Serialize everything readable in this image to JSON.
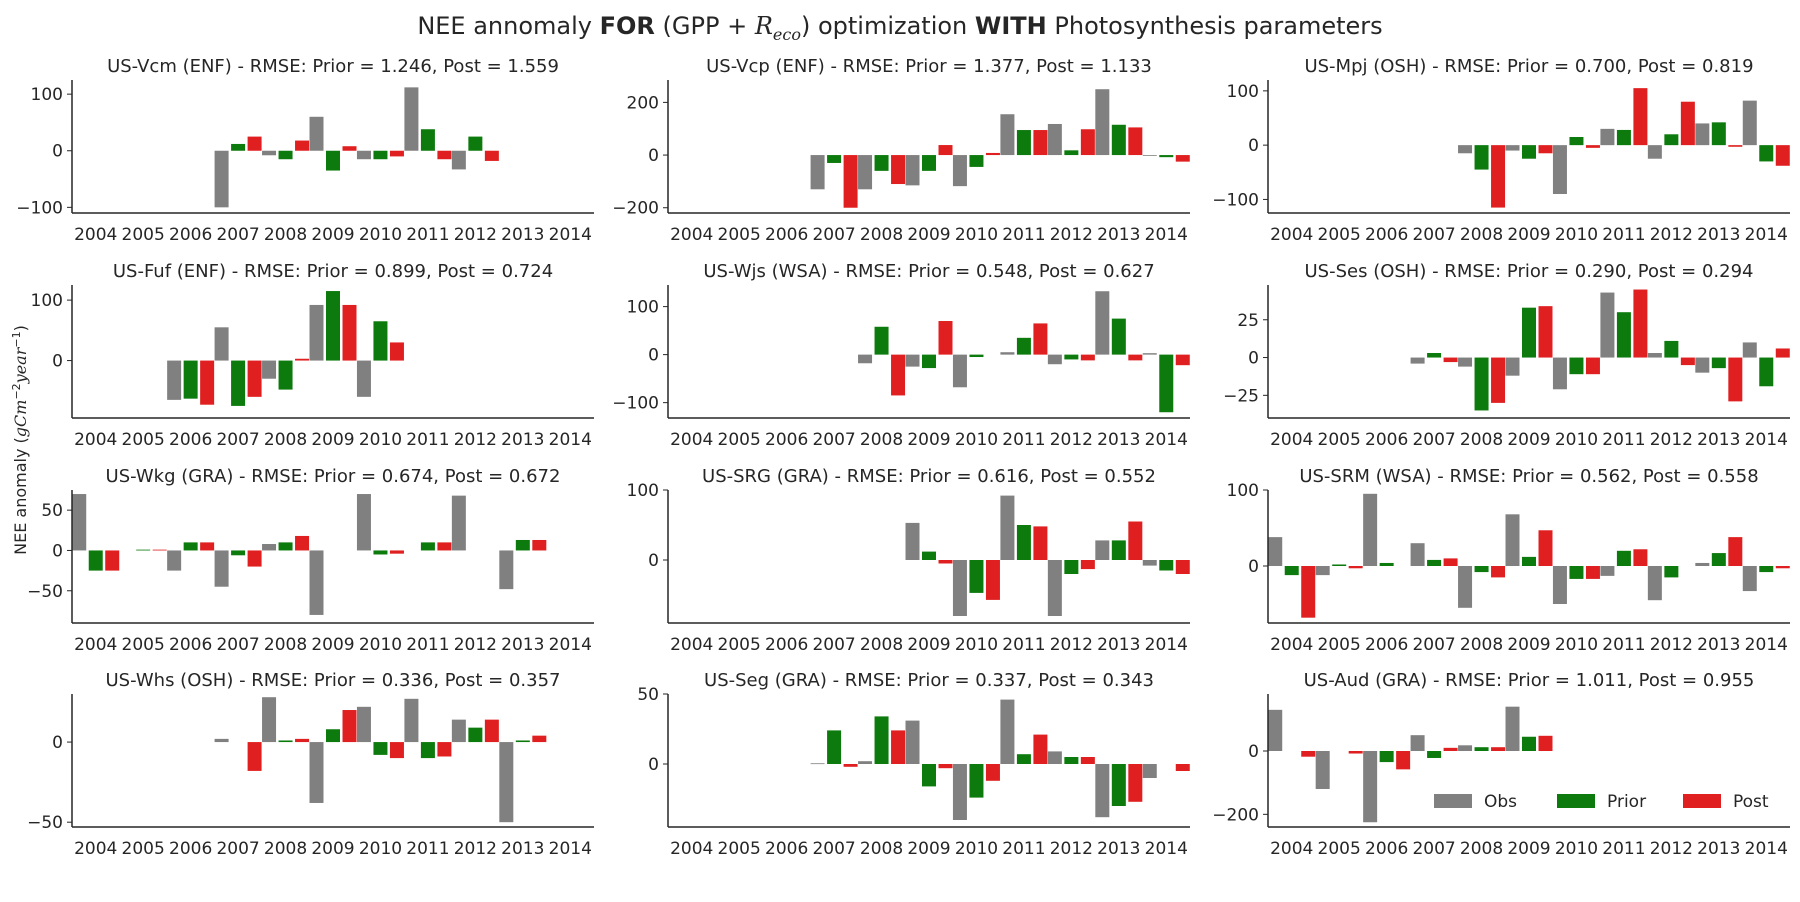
{
  "figure": {
    "title_pre": "NEE annomaly ",
    "title_for": "FOR",
    "title_mid1": " (GPP + ",
    "title_r": "R",
    "title_sub": "eco",
    "title_mid2": ") optimization ",
    "title_with": "WITH",
    "title_post": " Photosynthesis parameters",
    "ylabel_pre": "NEE anomaly (",
    "ylabel_unit": "gCm",
    "ylabel_exp1": "−2",
    "ylabel_mid": "year",
    "ylabel_exp2": "−1",
    "ylabel_post": ")"
  },
  "colors": {
    "Obs": "#808080",
    "Prior": "#0c7a0c",
    "Post": "#e02020",
    "axis": "#262626"
  },
  "legend": {
    "placement": "lower-right",
    "entries": [
      "Obs",
      "Prior",
      "Post"
    ]
  },
  "chart_data": [
    {
      "type": "bar",
      "title": "US-Vcm (ENF) - RMSE: Prior = 1.246, Post = 1.559",
      "categories": [
        "2004",
        "2005",
        "2006",
        "2007",
        "2008",
        "2009",
        "2010",
        "2011",
        "2012",
        "2013",
        "2014"
      ],
      "ylim": [
        -110,
        125
      ],
      "yticks": [
        -100,
        0,
        100
      ],
      "series": [
        {
          "name": "Obs",
          "values": [
            null,
            null,
            null,
            -100,
            -8,
            60,
            -15,
            112,
            -33,
            null,
            null
          ]
        },
        {
          "name": "Prior",
          "values": [
            null,
            null,
            null,
            12,
            -15,
            -35,
            -15,
            38,
            25,
            null,
            null
          ]
        },
        {
          "name": "Post",
          "values": [
            null,
            null,
            null,
            25,
            18,
            8,
            -10,
            -15,
            -18,
            null,
            null
          ]
        }
      ]
    },
    {
      "type": "bar",
      "title": "US-Vcp (ENF) - RMSE: Prior = 1.377, Post = 1.133",
      "categories": [
        "2004",
        "2005",
        "2006",
        "2007",
        "2008",
        "2009",
        "2010",
        "2011",
        "2012",
        "2013",
        "2014"
      ],
      "ylim": [
        -220,
        285
      ],
      "yticks": [
        -200,
        0,
        200
      ],
      "series": [
        {
          "name": "Obs",
          "values": [
            null,
            null,
            null,
            -130,
            -130,
            -115,
            -118,
            155,
            118,
            250,
            -3
          ]
        },
        {
          "name": "Prior",
          "values": [
            null,
            null,
            null,
            -30,
            -60,
            -60,
            -45,
            95,
            18,
            115,
            -8
          ]
        },
        {
          "name": "Post",
          "values": [
            null,
            null,
            null,
            -200,
            -110,
            38,
            8,
            95,
            98,
            105,
            -25
          ]
        }
      ]
    },
    {
      "type": "bar",
      "title": "US-Mpj (OSH) - RMSE: Prior = 0.700, Post = 0.819",
      "categories": [
        "2004",
        "2005",
        "2006",
        "2007",
        "2008",
        "2009",
        "2010",
        "2011",
        "2012",
        "2013",
        "2014"
      ],
      "ylim": [
        -125,
        120
      ],
      "yticks": [
        -100,
        0,
        100
      ],
      "series": [
        {
          "name": "Obs",
          "values": [
            null,
            null,
            null,
            null,
            -15,
            -10,
            -90,
            30,
            -25,
            40,
            82
          ]
        },
        {
          "name": "Prior",
          "values": [
            null,
            null,
            null,
            null,
            -45,
            -25,
            15,
            28,
            20,
            42,
            -30
          ]
        },
        {
          "name": "Post",
          "values": [
            null,
            null,
            null,
            null,
            -115,
            -15,
            -5,
            105,
            80,
            -3,
            -38
          ]
        }
      ]
    },
    {
      "type": "bar",
      "title": "US-Fuf (ENF) - RMSE: Prior = 0.899, Post = 0.724",
      "categories": [
        "2004",
        "2005",
        "2006",
        "2007",
        "2008",
        "2009",
        "2010",
        "2011",
        "2012",
        "2013",
        "2014"
      ],
      "ylim": [
        -95,
        125
      ],
      "yticks": [
        0,
        100
      ],
      "series": [
        {
          "name": "Obs",
          "values": [
            null,
            null,
            -65,
            55,
            -30,
            92,
            -60,
            null,
            null,
            null,
            null
          ]
        },
        {
          "name": "Prior",
          "values": [
            null,
            null,
            -63,
            -75,
            -48,
            115,
            65,
            null,
            null,
            null,
            null
          ]
        },
        {
          "name": "Post",
          "values": [
            null,
            null,
            -73,
            -60,
            3,
            92,
            30,
            null,
            null,
            null,
            null
          ]
        }
      ]
    },
    {
      "type": "bar",
      "title": "US-Wjs (WSA) - RMSE: Prior = 0.548, Post = 0.627",
      "categories": [
        "2004",
        "2005",
        "2006",
        "2007",
        "2008",
        "2009",
        "2010",
        "2011",
        "2012",
        "2013",
        "2014"
      ],
      "ylim": [
        -132,
        145
      ],
      "yticks": [
        -100,
        0,
        100
      ],
      "series": [
        {
          "name": "Obs",
          "values": [
            null,
            null,
            null,
            null,
            -18,
            -25,
            -68,
            5,
            -20,
            132,
            3
          ]
        },
        {
          "name": "Prior",
          "values": [
            null,
            null,
            null,
            null,
            58,
            -28,
            -5,
            35,
            -10,
            75,
            -120
          ]
        },
        {
          "name": "Post",
          "values": [
            null,
            null,
            null,
            null,
            -85,
            70,
            null,
            65,
            -12,
            -12,
            -22
          ]
        }
      ]
    },
    {
      "type": "bar",
      "title": "US-Ses (OSH) - RMSE: Prior = 0.290, Post = 0.294",
      "categories": [
        "2004",
        "2005",
        "2006",
        "2007",
        "2008",
        "2009",
        "2010",
        "2011",
        "2012",
        "2013",
        "2014"
      ],
      "ylim": [
        -40,
        48
      ],
      "yticks": [
        -25,
        0,
        25
      ],
      "series": [
        {
          "name": "Obs",
          "values": [
            null,
            null,
            null,
            -4,
            -6,
            -12,
            -21,
            43,
            3,
            -10,
            10
          ]
        },
        {
          "name": "Prior",
          "values": [
            null,
            null,
            null,
            3,
            -35,
            33,
            -11,
            30,
            11,
            -7,
            -19
          ]
        },
        {
          "name": "Post",
          "values": [
            null,
            null,
            null,
            -3,
            -30,
            34,
            -11,
            45,
            -5,
            -29,
            6
          ]
        }
      ]
    },
    {
      "type": "bar",
      "title": "US-Wkg (GRA) - RMSE: Prior = 0.674, Post = 0.672",
      "categories": [
        "2004",
        "2005",
        "2006",
        "2007",
        "2008",
        "2009",
        "2010",
        "2011",
        "2012",
        "2013",
        "2014"
      ],
      "ylim": [
        -90,
        75
      ],
      "yticks": [
        -50,
        0,
        50
      ],
      "series": [
        {
          "name": "Obs",
          "values": [
            70,
            null,
            -25,
            -45,
            8,
            -80,
            70,
            null,
            68,
            -48,
            null
          ]
        },
        {
          "name": "Prior",
          "values": [
            -25,
            1,
            10,
            -6,
            10,
            null,
            -5,
            10,
            null,
            13,
            null
          ]
        },
        {
          "name": "Post",
          "values": [
            -25,
            1,
            10,
            -20,
            18,
            null,
            -4,
            10,
            null,
            13,
            null
          ]
        }
      ]
    },
    {
      "type": "bar",
      "title": "US-SRG (GRA) - RMSE: Prior = 0.616, Post = 0.552",
      "categories": [
        "2004",
        "2005",
        "2006",
        "2007",
        "2008",
        "2009",
        "2010",
        "2011",
        "2012",
        "2013",
        "2014"
      ],
      "ylim": [
        -90,
        100
      ],
      "yticks": [
        0,
        100
      ],
      "series": [
        {
          "name": "Obs",
          "values": [
            null,
            null,
            null,
            null,
            null,
            53,
            -80,
            92,
            -80,
            28,
            -8
          ]
        },
        {
          "name": "Prior",
          "values": [
            null,
            null,
            null,
            null,
            null,
            12,
            -47,
            50,
            -20,
            28,
            -15
          ]
        },
        {
          "name": "Post",
          "values": [
            null,
            null,
            null,
            null,
            null,
            -5,
            -57,
            48,
            -13,
            55,
            -20
          ]
        }
      ]
    },
    {
      "type": "bar",
      "title": "US-SRM (WSA) - RMSE: Prior = 0.562, Post = 0.558",
      "categories": [
        "2004",
        "2005",
        "2006",
        "2007",
        "2008",
        "2009",
        "2010",
        "2011",
        "2012",
        "2013",
        "2014"
      ],
      "ylim": [
        -75,
        100
      ],
      "yticks": [
        0,
        100
      ],
      "series": [
        {
          "name": "Obs",
          "values": [
            38,
            -12,
            95,
            30,
            -55,
            68,
            -50,
            -13,
            -45,
            4,
            -33
          ]
        },
        {
          "name": "Prior",
          "values": [
            -12,
            2,
            4,
            8,
            -8,
            12,
            -17,
            20,
            -15,
            17,
            -8
          ]
        },
        {
          "name": "Post",
          "values": [
            -68,
            -3,
            null,
            10,
            -15,
            47,
            -17,
            22,
            null,
            38,
            -3
          ]
        }
      ]
    },
    {
      "type": "bar",
      "title": "US-Whs (OSH) - RMSE: Prior = 0.336, Post = 0.357",
      "categories": [
        "2004",
        "2005",
        "2006",
        "2007",
        "2008",
        "2009",
        "2010",
        "2011",
        "2012",
        "2013",
        "2014"
      ],
      "ylim": [
        -53,
        30
      ],
      "yticks": [
        -50,
        0
      ],
      "series": [
        {
          "name": "Obs",
          "values": [
            null,
            null,
            null,
            2,
            28,
            -38,
            22,
            27,
            14,
            -50,
            null
          ]
        },
        {
          "name": "Prior",
          "values": [
            null,
            null,
            null,
            null,
            1,
            8,
            -8,
            -10,
            9,
            1,
            null
          ]
        },
        {
          "name": "Post",
          "values": [
            null,
            null,
            null,
            -18,
            2,
            20,
            -10,
            -9,
            14,
            4,
            null
          ]
        }
      ]
    },
    {
      "type": "bar",
      "title": "US-Seg (GRA) - RMSE: Prior = 0.337, Post = 0.343",
      "categories": [
        "2004",
        "2005",
        "2006",
        "2007",
        "2008",
        "2009",
        "2010",
        "2011",
        "2012",
        "2013",
        "2014"
      ],
      "ylim": [
        -45,
        50
      ],
      "yticks": [
        0,
        50
      ],
      "series": [
        {
          "name": "Obs",
          "values": [
            null,
            null,
            null,
            0.5,
            2,
            31,
            -40,
            46,
            9,
            -38,
            -10
          ]
        },
        {
          "name": "Prior",
          "values": [
            null,
            null,
            null,
            24,
            34,
            -16,
            -24,
            7,
            5,
            -30,
            null
          ]
        },
        {
          "name": "Post",
          "values": [
            null,
            null,
            null,
            -2,
            24,
            -3,
            -12,
            21,
            5,
            -27,
            -5
          ]
        }
      ]
    },
    {
      "type": "bar",
      "title": "US-Aud (GRA) - RMSE: Prior = 1.011, Post = 0.955",
      "categories": [
        "2004",
        "2005",
        "2006",
        "2007",
        "2008",
        "2009",
        "2010",
        "2011",
        "2012",
        "2013",
        "2014"
      ],
      "ylim": [
        -240,
        180
      ],
      "yticks": [
        -200,
        0
      ],
      "series": [
        {
          "name": "Obs",
          "values": [
            130,
            -120,
            -225,
            50,
            18,
            140,
            null,
            null,
            null,
            null,
            null
          ]
        },
        {
          "name": "Prior",
          "values": [
            null,
            null,
            -35,
            -22,
            12,
            45,
            null,
            null,
            null,
            null,
            null
          ]
        },
        {
          "name": "Post",
          "values": [
            -18,
            -8,
            -58,
            10,
            12,
            48,
            null,
            null,
            null,
            null,
            null
          ]
        }
      ]
    }
  ]
}
